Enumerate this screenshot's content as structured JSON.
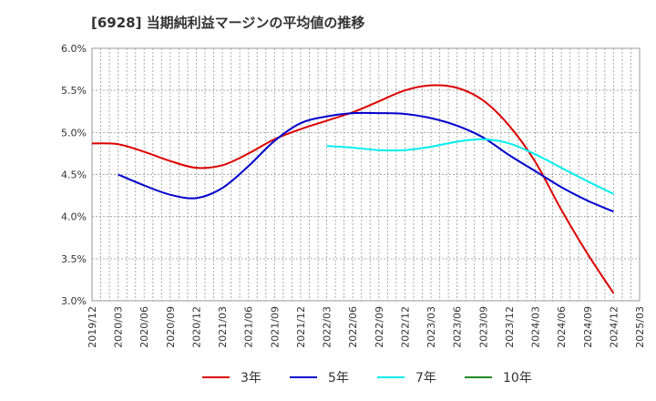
{
  "chart_data": {
    "type": "line",
    "title": "[6928]  当期純利益マージンの平均値の推移",
    "xlabel": "",
    "ylabel": "",
    "ylim": [
      3.0,
      6.0
    ],
    "yticks": [
      "3.0%",
      "3.5%",
      "4.0%",
      "4.5%",
      "5.0%",
      "5.5%",
      "6.0%"
    ],
    "yunit": "%",
    "x": [
      "2019/12",
      "2020/03",
      "2020/06",
      "2020/09",
      "2020/12",
      "2021/03",
      "2021/06",
      "2021/09",
      "2021/12",
      "2022/03",
      "2022/06",
      "2022/09",
      "2022/12",
      "2023/03",
      "2023/06",
      "2023/09",
      "2023/12",
      "2024/03",
      "2024/06",
      "2024/09",
      "2024/12",
      "2025/03"
    ],
    "grid": true,
    "legend_position": "bottom",
    "series": [
      {
        "name": "3年",
        "color": "#dd0000",
        "values": [
          4.87,
          4.86,
          4.77,
          4.66,
          4.58,
          4.61,
          4.75,
          4.92,
          5.04,
          5.14,
          5.24,
          5.37,
          5.5,
          5.56,
          5.53,
          5.38,
          5.08,
          4.65,
          4.08,
          3.56,
          3.09,
          null
        ]
      },
      {
        "name": "5年",
        "color": "#0000cc",
        "values": [
          null,
          4.5,
          4.37,
          4.26,
          4.22,
          4.34,
          4.6,
          4.9,
          5.11,
          5.19,
          5.23,
          5.23,
          5.22,
          5.17,
          5.08,
          4.94,
          4.73,
          4.54,
          4.35,
          4.19,
          4.06,
          null
        ]
      },
      {
        "name": "7年",
        "color": "#00eeee",
        "values": [
          null,
          null,
          null,
          null,
          null,
          null,
          null,
          null,
          null,
          4.84,
          4.82,
          4.79,
          4.79,
          4.83,
          4.89,
          4.92,
          4.87,
          4.74,
          4.58,
          4.42,
          4.27,
          null
        ]
      },
      {
        "name": "10年",
        "color": "#228B22",
        "values": [
          null,
          null,
          null,
          null,
          null,
          null,
          null,
          null,
          null,
          null,
          null,
          null,
          null,
          null,
          null,
          null,
          null,
          null,
          null,
          null,
          null,
          null
        ]
      }
    ]
  }
}
